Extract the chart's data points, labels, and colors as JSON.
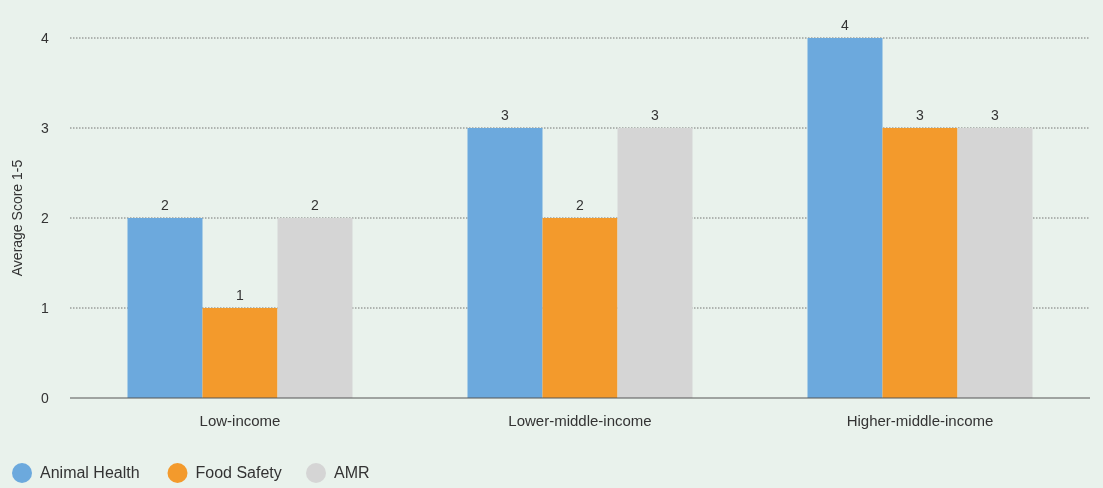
{
  "chart_data": {
    "type": "bar",
    "ylabel": "Average Score 1-5",
    "categories": [
      "Low-income",
      "Lower-middle-income",
      "Higher-middle-income"
    ],
    "series": [
      {
        "name": "Animal Health",
        "color": "#6ca9dd",
        "values": [
          2,
          3,
          4
        ]
      },
      {
        "name": "Food Safety",
        "color": "#f39a2c",
        "values": [
          1,
          2,
          3
        ]
      },
      {
        "name": "AMR",
        "color": "#d5d5d5",
        "values": [
          2,
          3,
          3
        ]
      }
    ],
    "ylim": [
      0,
      4
    ],
    "yticks": [
      0,
      1,
      2,
      3,
      4
    ],
    "grid": "y",
    "data_labels": true,
    "legend": "bottom left"
  }
}
